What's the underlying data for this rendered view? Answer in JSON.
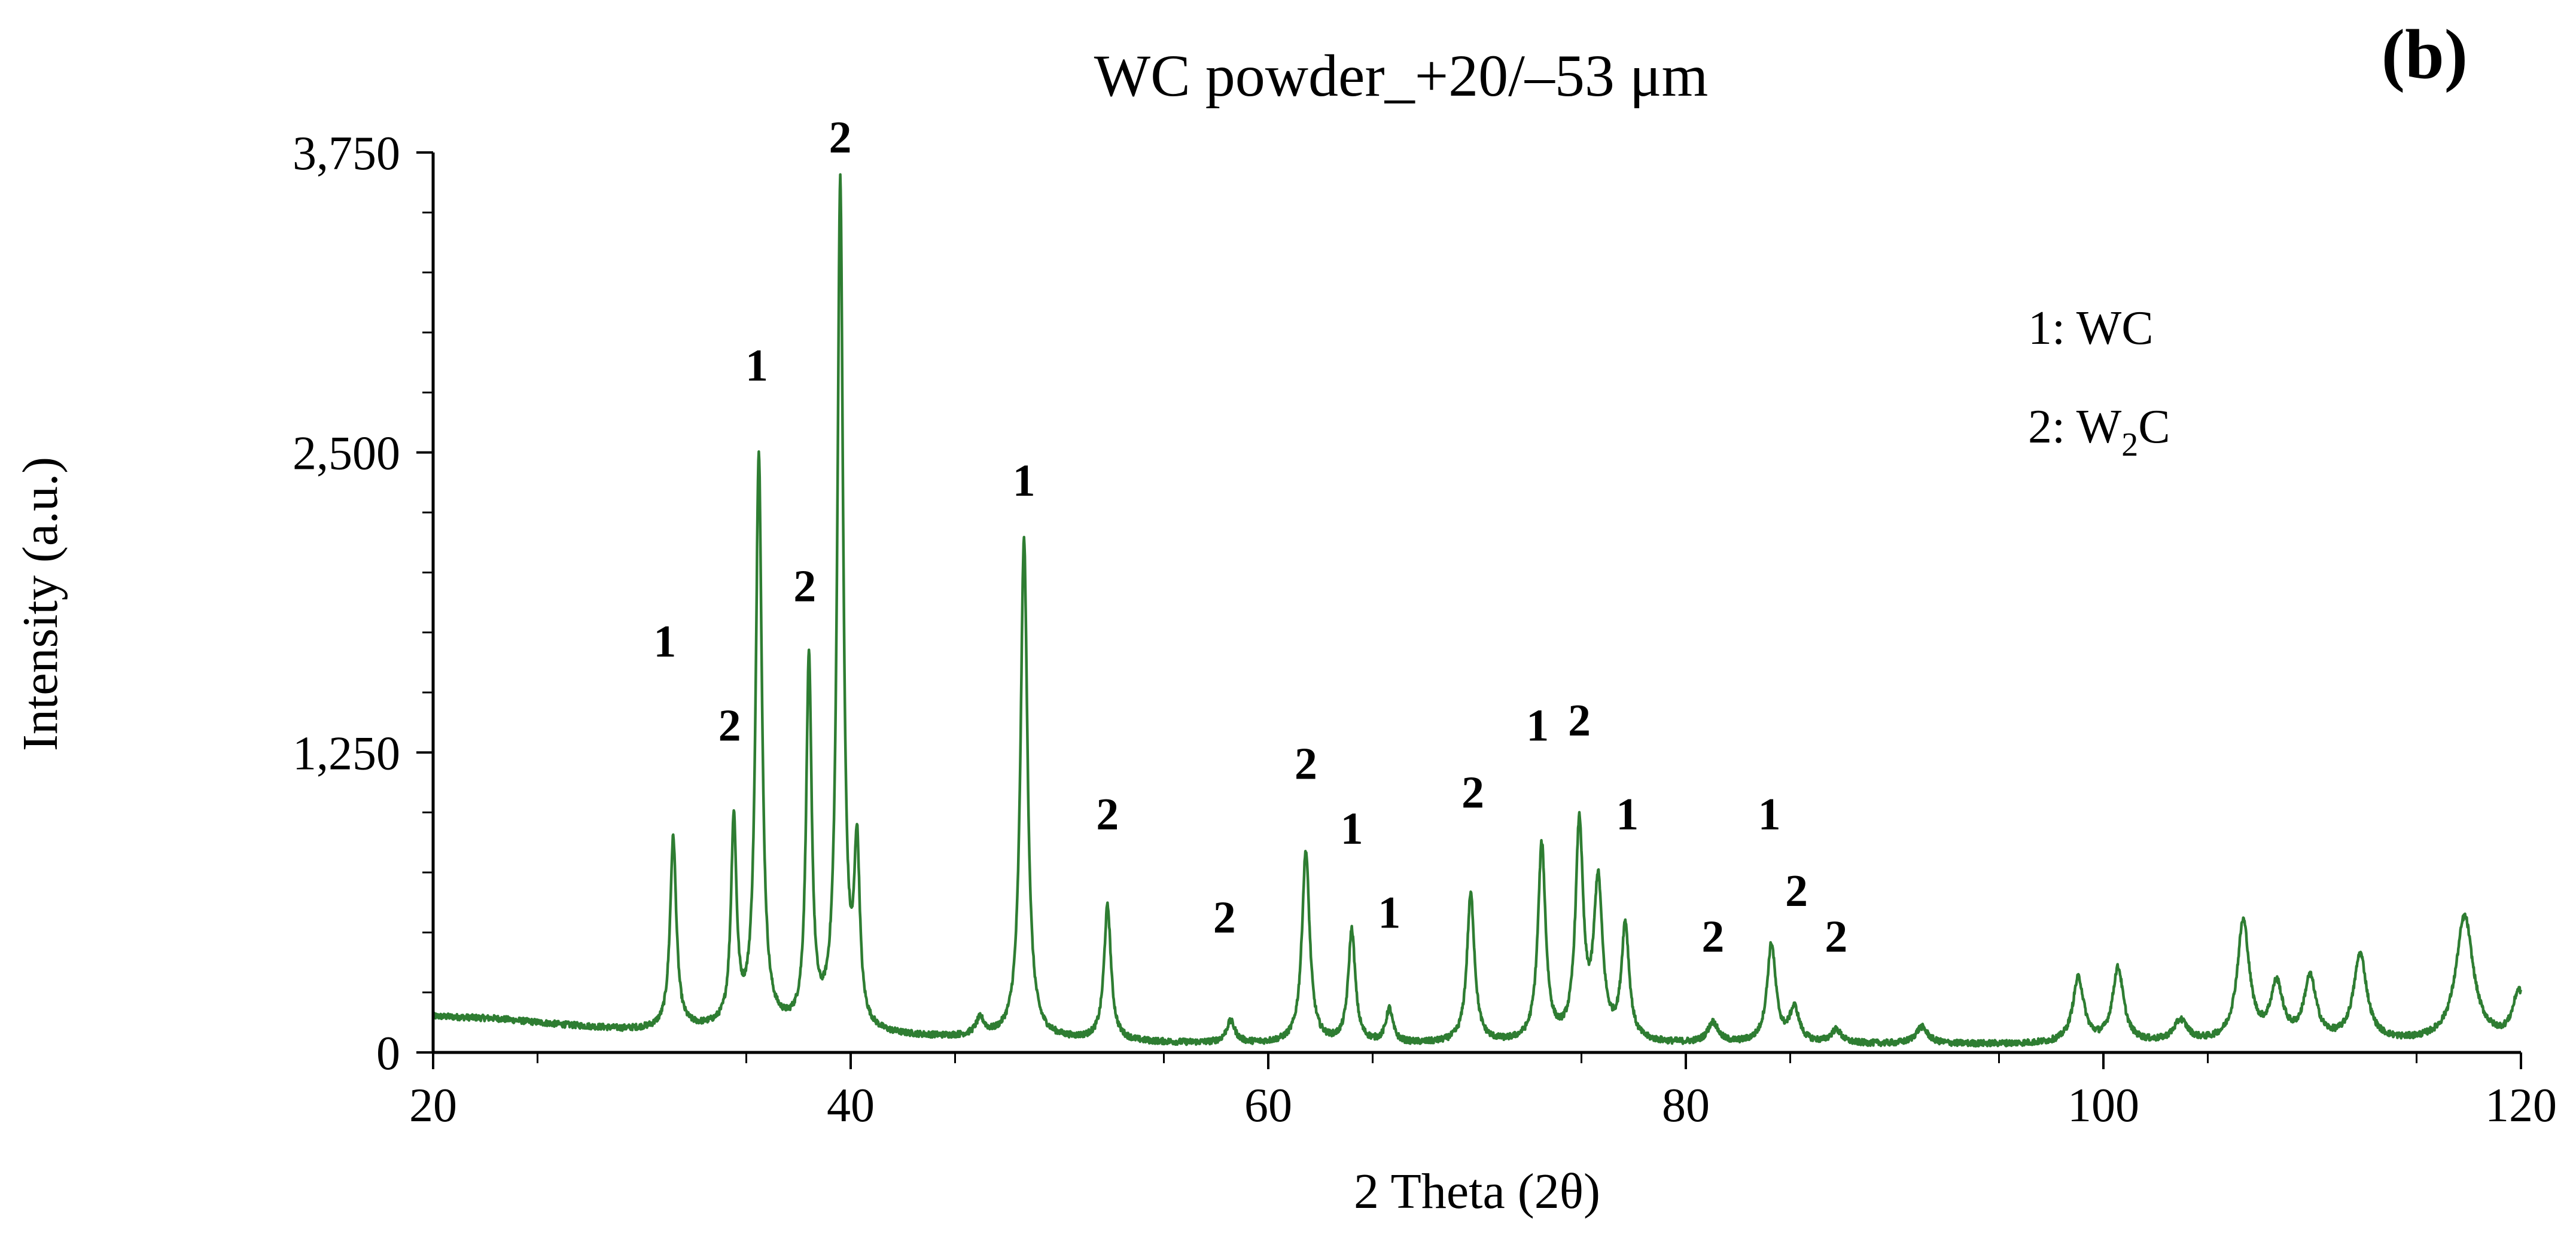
{
  "chart_data": {
    "type": "line",
    "title": "WC powder_+20/–53 μm",
    "panel_label": "(b)",
    "xlabel": "2 Theta (2θ)",
    "ylabel": "Intensity (a.u.)",
    "xlim": [
      20,
      120
    ],
    "ylim": [
      0,
      3750
    ],
    "x_ticks": [
      20,
      40,
      60,
      80,
      100,
      120
    ],
    "x_tick_labels": [
      "20",
      "40",
      "60",
      "80",
      "100",
      "120"
    ],
    "y_ticks": [
      0,
      1250,
      2500,
      3750
    ],
    "y_tick_labels": [
      "0",
      "1,250",
      "2,500",
      "3,750"
    ],
    "grid": false,
    "legend_position": "top-right",
    "legend": [
      {
        "text": "1: WC"
      },
      {
        "text": "2: W",
        "sub": "2",
        "tail": "C"
      }
    ],
    "color": "#2e7d32",
    "baseline": [
      [
        20,
        150
      ],
      [
        23,
        140
      ],
      [
        26,
        115
      ],
      [
        29,
        95
      ],
      [
        31,
        90
      ],
      [
        33,
        95
      ],
      [
        34,
        95
      ],
      [
        36,
        92
      ],
      [
        38,
        80
      ],
      [
        41,
        65
      ],
      [
        44,
        60
      ],
      [
        47,
        55
      ],
      [
        50,
        50
      ],
      [
        54,
        40
      ],
      [
        58,
        35
      ],
      [
        62,
        33
      ],
      [
        66,
        33
      ],
      [
        70,
        33
      ],
      [
        75,
        34
      ],
      [
        80,
        34
      ],
      [
        85,
        34
      ],
      [
        90,
        33
      ],
      [
        95,
        33
      ],
      [
        100,
        33
      ],
      [
        105,
        35
      ],
      [
        110,
        38
      ],
      [
        115,
        40
      ],
      [
        120,
        45
      ]
    ],
    "peaks": [
      {
        "x": 31.5,
        "y": 800,
        "w": 0.18,
        "phase": "1"
      },
      {
        "x": 34.4,
        "y": 850,
        "w": 0.16,
        "phase": "2"
      },
      {
        "x": 35.6,
        "y": 2380,
        "w": 0.18,
        "phase": "1"
      },
      {
        "x": 38.0,
        "y": 1520,
        "w": 0.16,
        "phase": "2"
      },
      {
        "x": 39.5,
        "y": 3530,
        "w": 0.17,
        "phase": "2"
      },
      {
        "x": 40.3,
        "y": 720,
        "w": 0.16,
        "phase": null
      },
      {
        "x": 46.2,
        "y": 70,
        "w": 0.25,
        "phase": null
      },
      {
        "x": 48.3,
        "y": 2080,
        "w": 0.2,
        "phase": "1"
      },
      {
        "x": 52.3,
        "y": 560,
        "w": 0.2,
        "phase": "2"
      },
      {
        "x": 58.2,
        "y": 90,
        "w": 0.25,
        "phase": "2"
      },
      {
        "x": 61.8,
        "y": 800,
        "w": 0.22,
        "phase": "2"
      },
      {
        "x": 64.0,
        "y": 470,
        "w": 0.2,
        "phase": "1"
      },
      {
        "x": 65.8,
        "y": 140,
        "w": 0.2,
        "phase": "1"
      },
      {
        "x": 69.7,
        "y": 620,
        "w": 0.22,
        "phase": "2"
      },
      {
        "x": 73.1,
        "y": 820,
        "w": 0.22,
        "phase": "1"
      },
      {
        "x": 74.9,
        "y": 890,
        "w": 0.22,
        "phase": "2"
      },
      {
        "x": 75.8,
        "y": 650,
        "w": 0.25,
        "phase": null
      },
      {
        "x": 77.1,
        "y": 480,
        "w": 0.22,
        "phase": "1"
      },
      {
        "x": 81.3,
        "y": 85,
        "w": 0.3,
        "phase": "2"
      },
      {
        "x": 84.1,
        "y": 410,
        "w": 0.25,
        "phase": "1"
      },
      {
        "x": 85.2,
        "y": 140,
        "w": 0.28,
        "phase": "2"
      },
      {
        "x": 87.2,
        "y": 55,
        "w": 0.3,
        "phase": "2"
      },
      {
        "x": 91.3,
        "y": 70,
        "w": 0.35,
        "phase": null
      },
      {
        "x": 98.8,
        "y": 270,
        "w": 0.32,
        "phase": null
      },
      {
        "x": 100.7,
        "y": 310,
        "w": 0.32,
        "phase": null
      },
      {
        "x": 103.7,
        "y": 90,
        "w": 0.4,
        "phase": null
      },
      {
        "x": 106.7,
        "y": 500,
        "w": 0.35,
        "phase": null
      },
      {
        "x": 108.3,
        "y": 230,
        "w": 0.35,
        "phase": null
      },
      {
        "x": 109.9,
        "y": 260,
        "w": 0.35,
        "phase": null
      },
      {
        "x": 112.3,
        "y": 360,
        "w": 0.38,
        "phase": null
      },
      {
        "x": 117.3,
        "y": 520,
        "w": 0.5,
        "phase": null
      },
      {
        "x": 119.9,
        "y": 200,
        "w": 0.35,
        "phase": null
      }
    ],
    "peak_labels": [
      {
        "text": "1",
        "x": 31.1,
        "y": 1650
      },
      {
        "text": "2",
        "x": 34.2,
        "y": 1300
      },
      {
        "text": "1",
        "x": 35.5,
        "y": 2800
      },
      {
        "text": "2",
        "x": 37.8,
        "y": 1880
      },
      {
        "text": "2",
        "x": 39.5,
        "y": 3750
      },
      {
        "text": "1",
        "x": 48.3,
        "y": 2320
      },
      {
        "text": "2",
        "x": 52.3,
        "y": 930
      },
      {
        "text": "2",
        "x": 57.9,
        "y": 500
      },
      {
        "text": "2",
        "x": 61.8,
        "y": 1140
      },
      {
        "text": "1",
        "x": 64.0,
        "y": 870
      },
      {
        "text": "1",
        "x": 65.8,
        "y": 520
      },
      {
        "text": "2",
        "x": 69.8,
        "y": 1020
      },
      {
        "text": "1",
        "x": 72.9,
        "y": 1300
      },
      {
        "text": "2",
        "x": 74.9,
        "y": 1320
      },
      {
        "text": "1",
        "x": 77.2,
        "y": 930
      },
      {
        "text": "2",
        "x": 81.3,
        "y": 420
      },
      {
        "text": "1",
        "x": 84.0,
        "y": 930
      },
      {
        "text": "2",
        "x": 85.3,
        "y": 610
      },
      {
        "text": "2",
        "x": 87.2,
        "y": 420
      }
    ]
  }
}
